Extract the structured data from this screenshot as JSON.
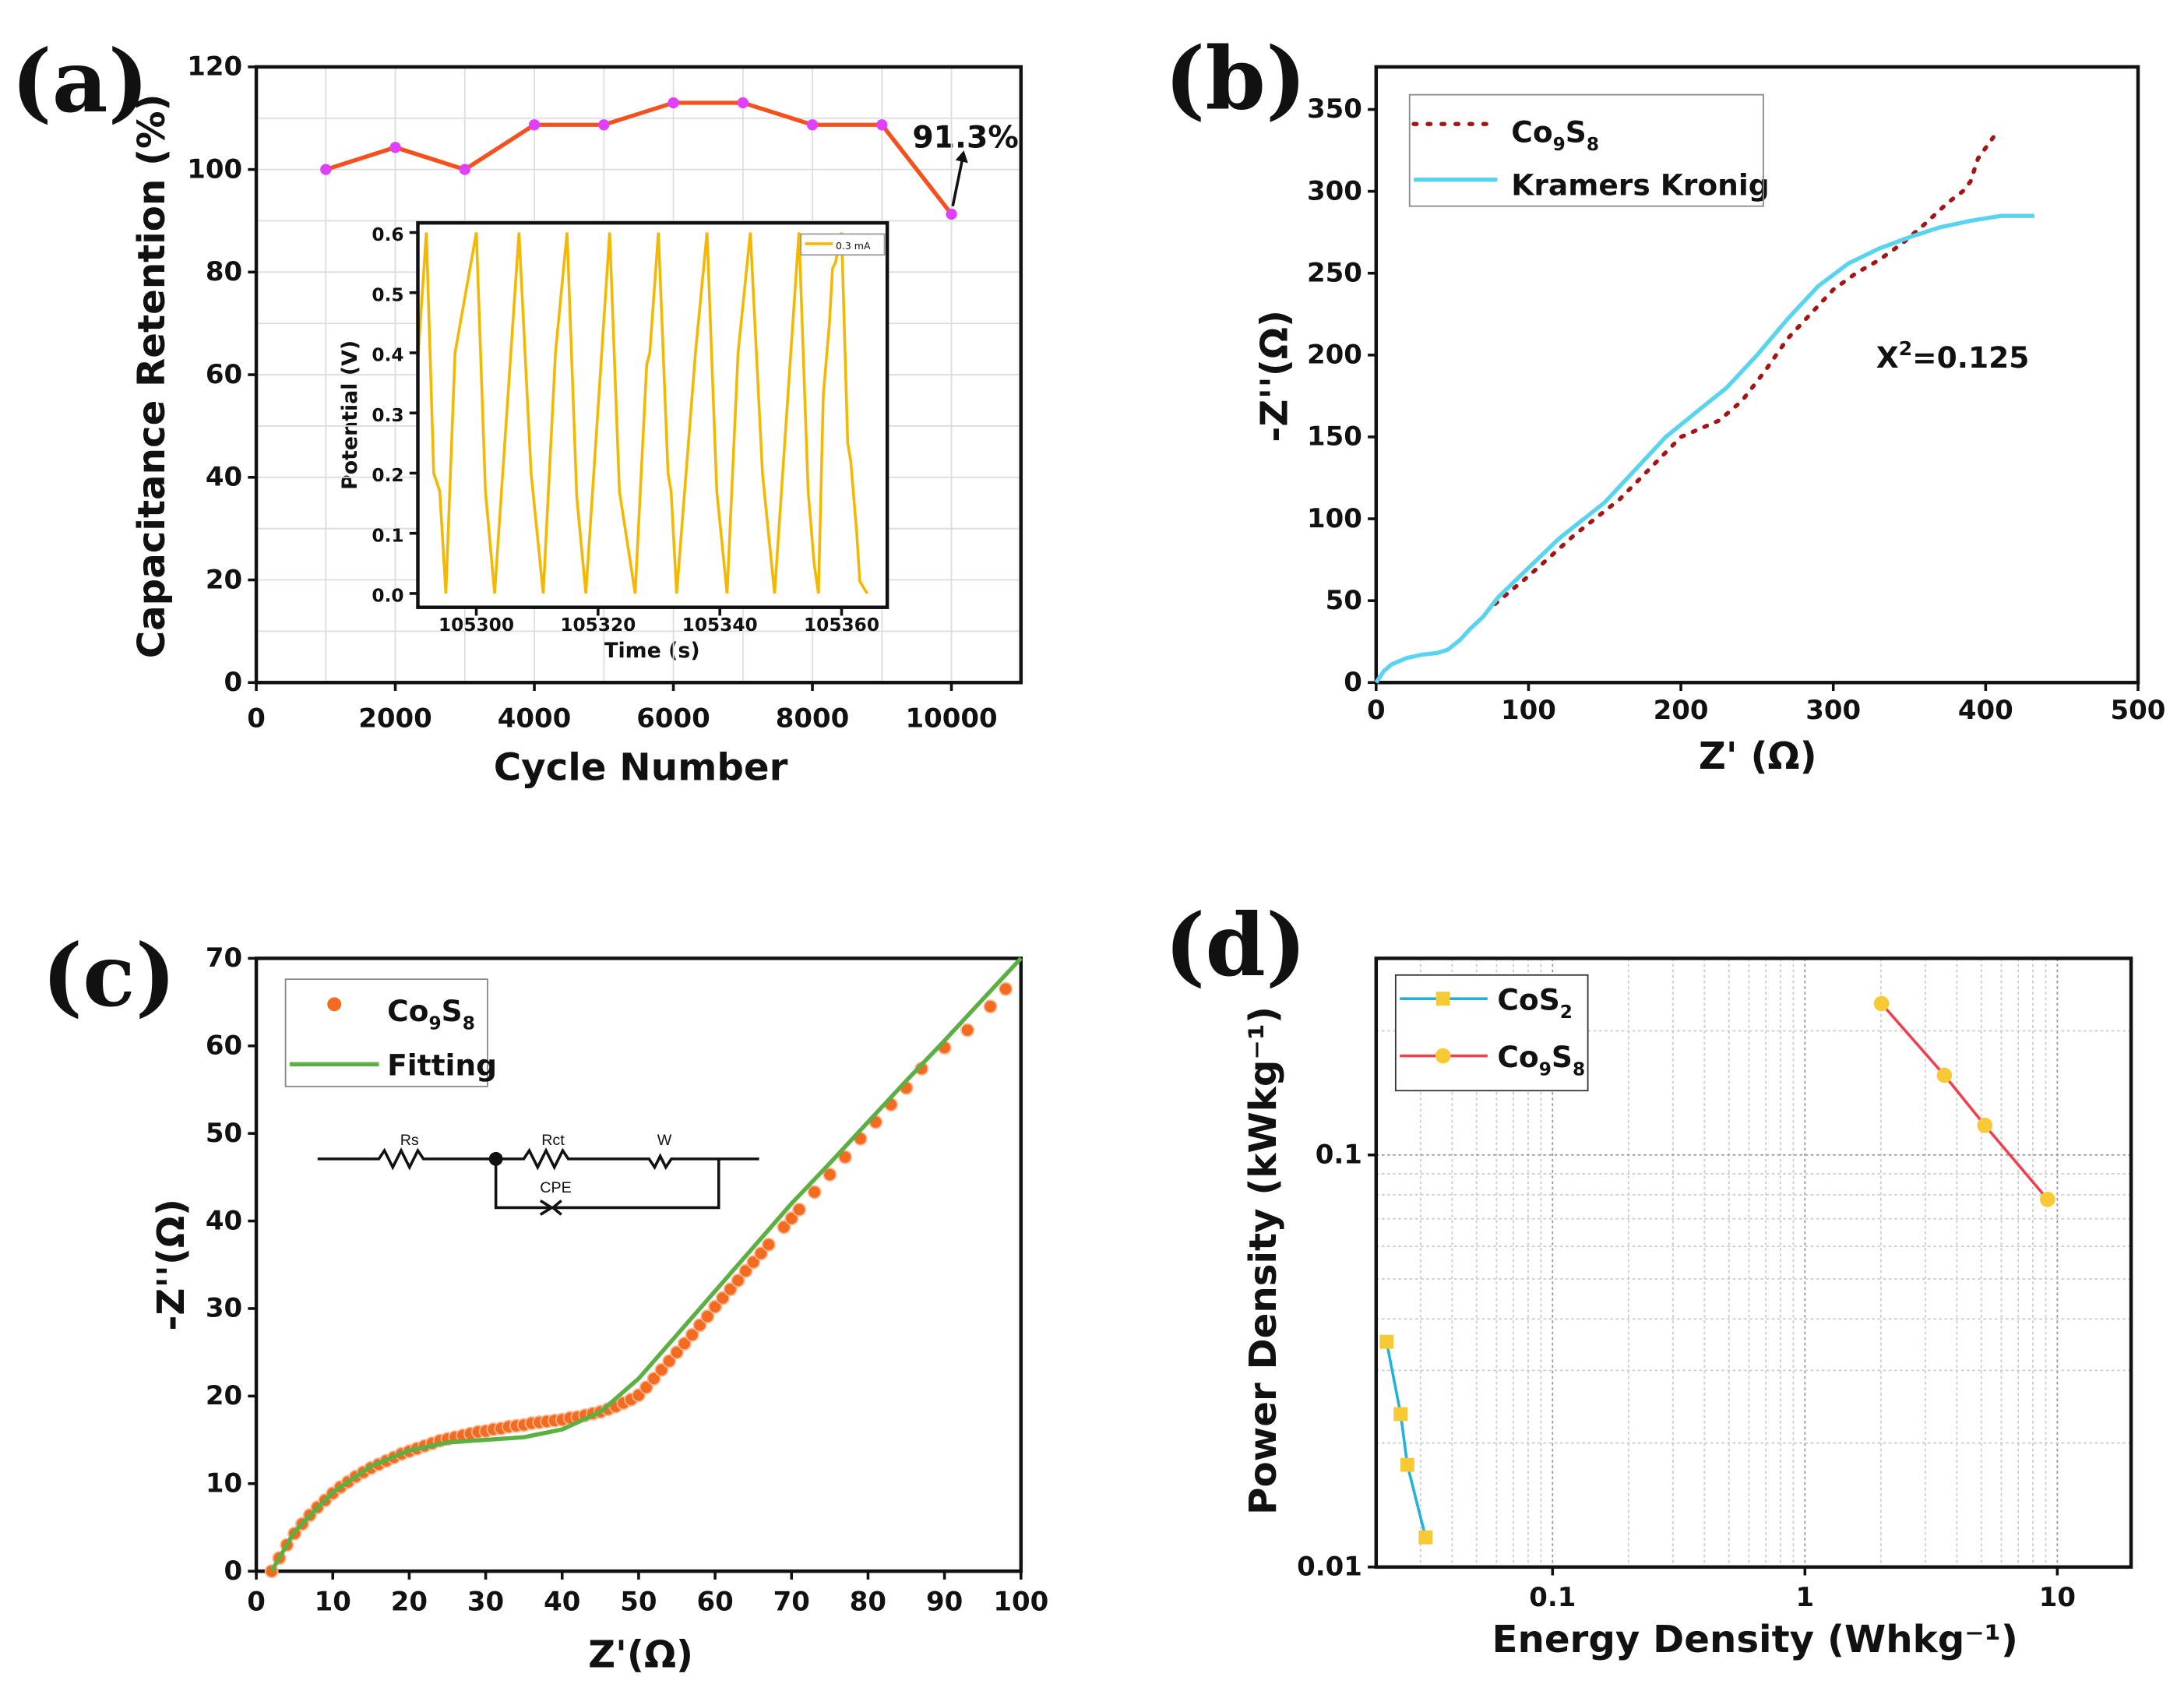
{
  "chart_data": [
    {
      "panel": "(a)",
      "type": "line",
      "xlabel": "Cycle Number",
      "ylabel": "Capacitance Retention (%)",
      "xlim": [
        0,
        11000
      ],
      "ylim": [
        0,
        120
      ],
      "xticks": [
        0,
        2000,
        4000,
        6000,
        8000,
        10000
      ],
      "yticks": [
        0,
        20,
        40,
        60,
        80,
        100,
        120
      ],
      "grid": true,
      "x": [
        1000,
        2000,
        3000,
        4000,
        5000,
        6000,
        7000,
        8000,
        9000,
        10000
      ],
      "y": [
        100,
        104.3,
        100,
        108.7,
        108.7,
        113,
        113,
        108.7,
        108.7,
        91.3
      ],
      "line_color": "#f4511e",
      "marker_color": "#e040fb",
      "annotation": "91.3%",
      "inset": {
        "type": "line",
        "xlabel": "Time (s)",
        "ylabel": "Potential (V)",
        "xlim": [
          105290.4,
          105367.5
        ],
        "ylim": [
          -0.023,
          0.616
        ],
        "xticks": [
          105300,
          105320,
          105340,
          105360
        ],
        "yticks": [
          "0.0",
          "0.1",
          "0.2",
          "0.3",
          "0.4",
          "0.5",
          "0.6"
        ],
        "legend": "0.3 mA",
        "color": "#f5b800",
        "x": [
          105290.4,
          105291.8,
          105293,
          105294,
          105295,
          105296.5,
          105300,
          105301.5,
          105303,
          105307,
          105309,
          105311,
          105313,
          105314.9,
          105316.5,
          105318,
          105321.9,
          105323.5,
          105326.1,
          105328,
          105328.5,
          105329.9,
          105331.5,
          105332,
          105332.9,
          105336,
          105337.9,
          105339.5,
          105341.2,
          105343,
          105345,
          105347,
          105349,
          105353,
          105354.5,
          105355.5,
          105356.2,
          105357,
          105358,
          105358.5,
          105359,
          105360,
          105361,
          105361.5,
          105362.5,
          105363,
          105364.2
        ],
        "y": [
          0.39,
          0.6,
          0.2,
          0.17,
          0.0,
          0.4,
          0.6,
          0.17,
          0.0,
          0.6,
          0.2,
          0.0,
          0.4,
          0.6,
          0.16,
          0.0,
          0.6,
          0.17,
          0.0,
          0.38,
          0.4,
          0.6,
          0.2,
          0.17,
          0.0,
          0.4,
          0.6,
          0.17,
          0.0,
          0.4,
          0.6,
          0.2,
          0.0,
          0.6,
          0.17,
          0.05,
          0.0,
          0.33,
          0.45,
          0.54,
          0.55,
          0.6,
          0.25,
          0.22,
          0.1,
          0.02,
          0.0
        ]
      }
    },
    {
      "panel": "(b)",
      "type": "line",
      "xlabel": "Z' (Ω)",
      "ylabel": "-Z''(Ω)",
      "xlim": [
        0,
        500
      ],
      "ylim": [
        0,
        376
      ],
      "xticks": [
        0,
        100,
        200,
        300,
        400,
        500
      ],
      "yticks": [
        0,
        50,
        100,
        150,
        200,
        250,
        300,
        350
      ],
      "annotation": {
        "base": "X",
        "sup": "2",
        "rest": "=0.125"
      },
      "series": [
        {
          "name_parts": [
            "Co",
            "9",
            "S",
            "8"
          ],
          "style": "dotted",
          "color": "#a31515",
          "x": [
            78,
            100,
            130,
            160,
            200,
            225,
            240,
            255,
            270,
            285,
            300,
            315,
            330,
            345,
            360,
            375,
            385,
            390,
            395,
            405
          ],
          "y": [
            48,
            65,
            90,
            112,
            150,
            160,
            172,
            190,
            210,
            225,
            240,
            250,
            258,
            268,
            280,
            293,
            300,
            306,
            320,
            333
          ]
        },
        {
          "name": "Kramers Kronig",
          "style": "solid",
          "color": "#5ad4ee",
          "x": [
            0,
            5,
            10,
            20,
            30,
            40,
            47,
            55,
            62,
            70,
            80,
            100,
            120,
            150,
            170,
            190,
            210,
            230,
            250,
            270,
            290,
            310,
            330,
            350,
            370,
            390,
            410,
            432
          ],
          "y": [
            0,
            7,
            11,
            15,
            17,
            18,
            20,
            26,
            33,
            40,
            52,
            70,
            88,
            110,
            130,
            150,
            165,
            180,
            200,
            222,
            242,
            256,
            265,
            272,
            278,
            282,
            285,
            285
          ]
        }
      ]
    },
    {
      "panel": "(c)",
      "type": "scatter+line",
      "xlabel": "Z'(Ω)",
      "ylabel": "-Z''(Ω)",
      "xlim": [
        0,
        100
      ],
      "ylim": [
        0,
        70
      ],
      "xticks": [
        0,
        10,
        20,
        30,
        40,
        50,
        60,
        70,
        80,
        90,
        100
      ],
      "yticks": [
        0,
        10,
        20,
        30,
        40,
        50,
        60,
        70
      ],
      "circuit": {
        "labels": [
          "Rs",
          "Rct",
          "W",
          "CPE"
        ]
      },
      "series": [
        {
          "name_parts": [
            "Co",
            "9",
            "S",
            "8"
          ],
          "style": "markers",
          "color": "#f26b21",
          "x": [
            2,
            3,
            4,
            5,
            6,
            7,
            8,
            9,
            10,
            11,
            12,
            13,
            14,
            15,
            16,
            17,
            18,
            19,
            20,
            21,
            22,
            23,
            24,
            25,
            26,
            27,
            28,
            29,
            30,
            31,
            32,
            33,
            34,
            35,
            36,
            37,
            38,
            39,
            40,
            41,
            42,
            43,
            44,
            45,
            46,
            47,
            48,
            49,
            50,
            51,
            52,
            53,
            54,
            55,
            56,
            57,
            58,
            59,
            60,
            61,
            62,
            63,
            64,
            65,
            66,
            67,
            69,
            70,
            71,
            73,
            75,
            77,
            79,
            81,
            83,
            85,
            87,
            90,
            93,
            96,
            98
          ],
          "y": [
            0,
            1.5,
            3,
            4.3,
            5.4,
            6.4,
            7.3,
            8.1,
            8.9,
            9.6,
            10.2,
            10.8,
            11.3,
            11.8,
            12.2,
            12.6,
            13,
            13.4,
            13.7,
            14,
            14.3,
            14.6,
            14.9,
            15.1,
            15.3,
            15.5,
            15.7,
            15.9,
            16,
            16.2,
            16.3,
            16.5,
            16.6,
            16.7,
            16.9,
            17,
            17.1,
            17.2,
            17.3,
            17.5,
            17.6,
            17.8,
            18,
            18.2,
            18.5,
            18.8,
            19.2,
            19.6,
            20.1,
            21,
            22,
            23,
            24,
            25,
            26,
            27,
            28.1,
            29.1,
            30.2,
            31.2,
            32.2,
            33.2,
            34.3,
            35.3,
            36.3,
            37.3,
            39.3,
            40.3,
            41.3,
            43.3,
            45.3,
            47.3,
            49.4,
            51.3,
            53.3,
            55.2,
            57.4,
            59.8,
            61.8,
            64.5,
            66.5
          ]
        },
        {
          "name": "Fitting",
          "style": "solid",
          "color": "#5cb043",
          "x": [
            2,
            5,
            10,
            15,
            20,
            25,
            30,
            35,
            40,
            45,
            50,
            55,
            60,
            65,
            70,
            75,
            80,
            85,
            90,
            95,
            100
          ],
          "y": [
            0,
            4.5,
            9,
            12,
            13.8,
            14.7,
            15,
            15.3,
            16.2,
            18.2,
            22,
            27,
            32,
            37,
            42,
            46.6,
            51.3,
            56,
            60.6,
            65.3,
            70
          ]
        }
      ]
    },
    {
      "panel": "(d)",
      "type": "line",
      "xscale": "log",
      "yscale": "log",
      "xlabel": "Energy Density (Whkg⁻¹)",
      "ylabel": "Power Density (kWkg⁻¹)",
      "xlim": [
        0.02,
        19.6
      ],
      "ylim": [
        0.01,
        0.3
      ],
      "xticks": [
        "0.1",
        "1",
        "10"
      ],
      "yticks": [
        "0.01",
        "0.1"
      ],
      "grid": true,
      "series": [
        {
          "name_parts": [
            "CoS",
            "2"
          ],
          "marker": "square",
          "color": "#1fb3dc",
          "marker_color": "#f7c934",
          "x": [
            0.022,
            0.025,
            0.0266,
            0.0314
          ],
          "y": [
            0.0352,
            0.0235,
            0.0177,
            0.0118
          ]
        },
        {
          "name_parts": [
            "Co",
            "9",
            "S",
            "8"
          ],
          "marker": "circle",
          "color": "#f0404f",
          "marker_color": "#f7c934",
          "x": [
            2.01,
            3.57,
            5.16,
            9.15
          ],
          "y": [
            0.233,
            0.156,
            0.118,
            0.078
          ]
        }
      ]
    }
  ],
  "labels": {
    "a": "(a)",
    "b": "(b)",
    "c": "(c)",
    "d": "(d)"
  }
}
